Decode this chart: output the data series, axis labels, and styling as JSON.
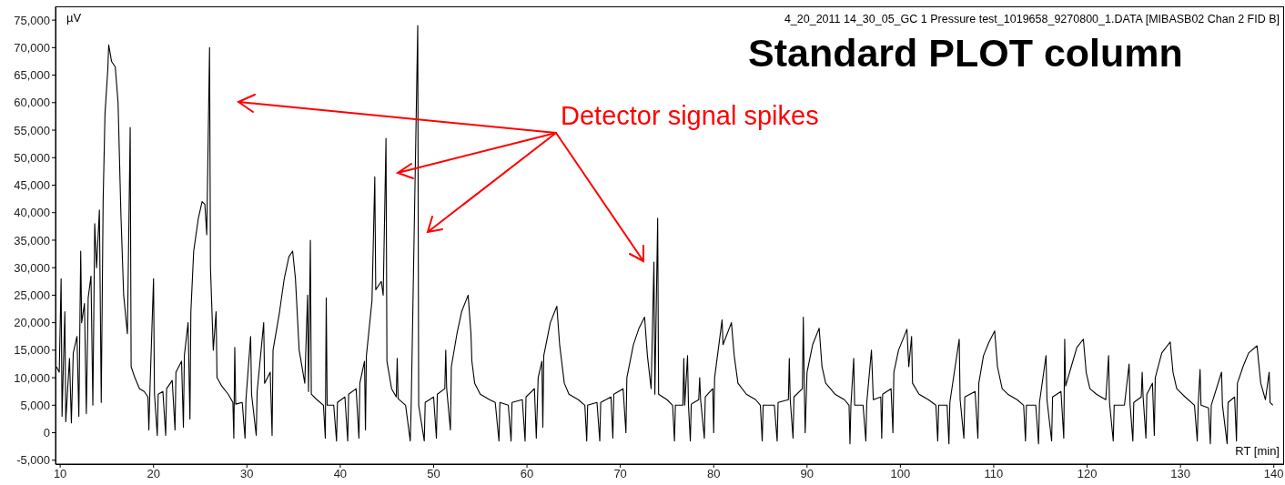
{
  "chart_data": {
    "type": "line",
    "title": "Standard PLOT column",
    "xlabel": "RT [min]",
    "ylabel": "µV",
    "annotations": [
      "4_20_2011 14_30_05_GC 1 Pressure test_1019658_9270800_1.DATA [MIBASB02  Chan 2  FID B]",
      "Detector signal spikes"
    ],
    "xlim": [
      9.5,
      141.1
    ],
    "xticks": [
      10,
      20,
      30,
      40,
      50,
      60,
      70,
      80,
      90,
      100,
      110,
      120,
      130,
      140
    ],
    "ylim": [
      -5700,
      77500
    ],
    "yticks": [
      {
        "value": -5000,
        "label": "-5,000"
      },
      0,
      {
        "value": 5000,
        "label": "5,000"
      },
      {
        "value": 10000,
        "label": "10,000"
      },
      {
        "value": 15000,
        "label": "15,000"
      },
      {
        "value": 20000,
        "label": "20,000"
      },
      {
        "value": 25000,
        "label": "25,000"
      },
      {
        "value": 30000,
        "label": "30,000"
      },
      {
        "value": 35000,
        "label": "35,000"
      },
      {
        "value": 40000,
        "label": "40,000"
      },
      {
        "value": 45000,
        "label": "45,000"
      },
      {
        "value": 50000,
        "label": "50,000"
      },
      {
        "value": 55000,
        "label": "55,000"
      },
      {
        "value": 60000,
        "label": "60,000"
      },
      {
        "value": 65000,
        "label": "65,000"
      },
      {
        "value": 70000,
        "label": "70,000"
      },
      {
        "value": 75000,
        "label": "75,000"
      }
    ],
    "grid": false,
    "legend": false,
    "x": [
      9.6,
      9.9,
      10.1,
      10.2,
      10.3,
      10.5,
      10.6,
      10.8,
      11.0,
      11.2,
      11.4,
      11.8,
      12.0,
      12.2,
      12.3,
      12.6,
      12.8,
      13.0,
      13.3,
      13.5,
      13.7,
      13.9,
      14.2,
      14.4,
      14.6,
      14.8,
      15.1,
      15.2,
      15.5,
      15.9,
      16.2,
      16.5,
      16.8,
      17.2,
      17.5,
      17.6,
      18.0,
      18.5,
      19.0,
      19.4,
      19.5,
      19.6,
      20.0,
      20.1,
      20.4,
      20.5,
      21.0,
      21.3,
      21.4,
      22.0,
      22.3,
      22.4,
      23.0,
      23.2,
      23.3,
      23.7,
      23.9,
      24.0,
      24.3,
      24.8,
      25.2,
      25.5,
      25.7,
      26.0,
      26.1,
      26.4,
      26.7,
      26.8,
      27.3,
      28.0,
      28.5,
      28.6,
      28.7,
      28.8,
      29.5,
      29.8,
      29.9,
      30.4,
      30.5,
      31.0,
      31.1,
      31.8,
      31.9,
      32.5,
      32.7,
      32.8,
      33.5,
      34.0,
      34.5,
      34.9,
      35.2,
      35.6,
      36.2,
      36.5,
      36.6,
      36.8,
      36.9,
      37.5,
      38.2,
      38.4,
      38.5,
      38.6,
      39.3,
      39.6,
      39.7,
      40.5,
      40.8,
      40.9,
      41.7,
      42.0,
      42.1,
      42.6,
      42.7,
      42.8,
      43.4,
      43.7,
      43.8,
      44.4,
      44.6,
      44.9,
      45.0,
      45.5,
      46.0,
      46.1,
      46.2,
      47.0,
      47.5,
      47.6,
      48.3,
      48.4,
      49.0,
      49.1,
      50.0,
      50.3,
      50.4,
      51.2,
      51.3,
      51.4,
      51.8,
      51.9,
      52.5,
      53.0,
      53.7,
      54.0,
      54.1,
      54.4,
      55.0,
      56.0,
      56.6,
      57.0,
      57.1,
      58.0,
      58.3,
      58.4,
      59.5,
      59.8,
      59.9,
      60.8,
      61.0,
      61.2,
      61.6,
      61.7,
      61.8,
      62.5,
      63.2,
      63.5,
      64.0,
      64.5,
      65.5,
      66.2,
      66.4,
      66.5,
      67.5,
      67.8,
      67.9,
      69.0,
      69.2,
      69.3,
      70.3,
      70.6,
      70.7,
      71.4,
      72.0,
      72.6,
      72.9,
      73.3,
      73.6,
      73.7,
      74.0,
      74.1,
      75.0,
      75.6,
      75.8,
      75.9,
      76.7,
      76.8,
      76.9,
      77.2,
      77.3,
      77.5,
      77.6,
      78.4,
      78.5,
      78.6,
      79.0,
      79.1,
      79.9,
      80.0,
      80.1,
      80.9,
      81.0,
      81.9,
      82.2,
      82.6,
      83.5,
      84.5,
      85.0,
      85.2,
      85.3,
      86.5,
      86.8,
      86.9,
      88.0,
      88.1,
      88.2,
      88.5,
      88.6,
      89.5,
      89.6,
      89.7,
      89.8,
      90.0,
      90.6,
      91.3,
      91.6,
      92.0,
      93.0,
      94.0,
      94.5,
      94.6,
      94.7,
      95.0,
      95.1,
      96.0,
      96.3,
      96.4,
      96.9,
      97.1,
      97.9,
      98.0,
      98.1,
      99.0,
      99.2,
      99.3,
      99.8,
      100.7,
      100.9,
      101.2,
      101.3,
      102.0,
      103.0,
      103.8,
      104.0,
      104.1,
      105.0,
      105.2,
      105.3,
      106.3,
      106.4,
      106.8,
      106.9,
      108.0,
      108.3,
      108.4,
      108.9,
      109.5,
      110.1,
      110.4,
      110.9,
      111.5,
      112.5,
      113.2,
      113.4,
      113.5,
      114.5,
      114.8,
      114.9,
      115.6,
      115.7,
      116.2,
      116.3,
      117.2,
      117.5,
      117.6,
      117.7,
      118.3,
      118.9,
      119.6,
      119.9,
      120.3,
      121.0,
      122.0,
      122.3,
      122.4,
      122.8,
      122.9,
      124.0,
      124.5,
      124.6,
      124.9,
      125.0,
      125.8,
      125.9,
      126.0,
      126.3,
      126.4,
      127.0,
      127.2,
      127.3,
      128.0,
      128.9,
      129.2,
      129.6,
      130.5,
      131.5,
      131.8,
      131.9,
      132.1,
      132.2,
      133.0,
      133.2,
      133.3,
      134.4,
      134.5,
      135.0,
      135.1,
      135.8,
      136.0,
      136.1,
      136.7,
      137.3,
      138.2,
      138.6,
      139.1,
      139.5,
      139.6,
      139.9
    ],
    "series": [
      {
        "color": "#000000",
        "values": [
          12000,
          11000,
          28000,
          3000,
          9500,
          22000,
          2000,
          8000,
          13500,
          1800,
          14500,
          17500,
          3000,
          33000,
          20000,
          23500,
          3500,
          24500,
          28500,
          5000,
          38000,
          30000,
          40500,
          5500,
          42000,
          58000,
          66000,
          70500,
          67500,
          66500,
          60000,
          40000,
          25000,
          18000,
          55500,
          12000,
          10000,
          8000,
          7500,
          6500,
          500,
          7000,
          28000,
          7000,
          -500,
          7000,
          7500,
          -500,
          8000,
          9500,
          500,
          11000,
          13000,
          1000,
          14000,
          20000,
          2500,
          22000,
          33000,
          39000,
          42000,
          41500,
          36000,
          70000,
          30000,
          15000,
          22000,
          10000,
          8500,
          7000,
          5500,
          -1000,
          15500,
          5200,
          5500,
          -1000,
          6000,
          17500,
          7000,
          -500,
          7500,
          20000,
          9000,
          11000,
          -500,
          15000,
          22000,
          28000,
          32000,
          33000,
          28000,
          15000,
          9000,
          25000,
          7500,
          35000,
          7000,
          6000,
          5000,
          -1000,
          24500,
          5000,
          5000,
          -1500,
          5500,
          6500,
          -1500,
          7000,
          8000,
          -1000,
          9000,
          13000,
          500,
          14000,
          24000,
          46500,
          26000,
          27500,
          25000,
          53500,
          13000,
          8000,
          6500,
          13500,
          6200,
          5000,
          -1500,
          5000,
          74000,
          5000,
          -1500,
          5500,
          6500,
          -1000,
          7000,
          8000,
          15000,
          8000,
          500,
          12000,
          18000,
          22000,
          25000,
          18000,
          13000,
          9000,
          7000,
          6000,
          5500,
          -1500,
          5500,
          5000,
          -1500,
          5500,
          6000,
          -1500,
          6500,
          8000,
          -1000,
          10000,
          13000,
          1000,
          14000,
          20000,
          23000,
          16000,
          9000,
          7000,
          6000,
          5000,
          -1500,
          5000,
          5500,
          -1500,
          5500,
          6500,
          -1000,
          7000,
          8000,
          0,
          10000,
          16000,
          19000,
          21000,
          14000,
          8000,
          31000,
          7000,
          39000,
          7000,
          6000,
          5000,
          -1500,
          5000,
          5000,
          13500,
          5000,
          14000,
          5000,
          -1500,
          5200,
          6000,
          10000,
          6000,
          -1000,
          6500,
          8000,
          0,
          10000,
          20500,
          16000,
          20000,
          14000,
          9000,
          7000,
          6000,
          5000,
          -1500,
          5000,
          5000,
          -1500,
          5500,
          6000,
          13500,
          6000,
          -1000,
          6500,
          8000,
          21000,
          9000,
          0,
          11000,
          16000,
          19000,
          12000,
          9000,
          7000,
          6000,
          5000,
          -2000,
          5000,
          13500,
          5000,
          5000,
          -1500,
          5500,
          15000,
          6000,
          6500,
          -1000,
          7000,
          8000,
          0,
          11000,
          15000,
          18800,
          12000,
          17500,
          9000,
          7000,
          6000,
          5000,
          -1500,
          5000,
          5000,
          -2000,
          5500,
          17000,
          6000,
          -1000,
          6500,
          7500,
          -1000,
          9000,
          14000,
          16500,
          18500,
          12000,
          8000,
          7000,
          6000,
          5000,
          -1500,
          5000,
          5000,
          -2000,
          5500,
          14000,
          6000,
          -1500,
          6500,
          7500,
          -1000,
          17000,
          8500,
          12000,
          15500,
          17000,
          11000,
          8000,
          7000,
          6000,
          14000,
          5500,
          -1500,
          5000,
          5000,
          12500,
          5200,
          -1500,
          5500,
          6500,
          11000,
          6500,
          -1000,
          7000,
          9000,
          -500,
          10000,
          14500,
          16500,
          11000,
          8000,
          6500,
          5000,
          -1500,
          5000,
          11500,
          5000,
          4500,
          -2000,
          5000,
          11000,
          5000,
          -2000,
          5500,
          6500,
          -1500,
          9000,
          12000,
          14500,
          15800,
          9000,
          6000,
          11000,
          5500,
          5000
        ]
      }
    ]
  }
}
